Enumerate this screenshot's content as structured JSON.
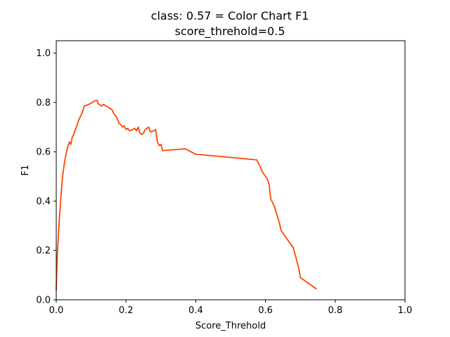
{
  "chart_data": {
    "type": "line",
    "title": "class: 0.57 = Color Chart F1",
    "subtitle": "score_threhold=0.5",
    "xlabel": "Score_Threhold",
    "ylabel": "F1",
    "xlim": [
      0.0,
      1.0
    ],
    "ylim": [
      0.0,
      1.05
    ],
    "grid": false,
    "xticks": [
      0.0,
      0.2,
      0.4,
      0.6,
      0.8,
      1.0
    ],
    "xtick_labels": [
      "0.0",
      "0.2",
      "0.4",
      "0.6",
      "0.8",
      "1.0"
    ],
    "yticks": [
      0.0,
      0.2,
      0.4,
      0.6,
      0.8,
      1.0
    ],
    "ytick_labels": [
      "0.0",
      "0.2",
      "0.4",
      "0.6",
      "0.8",
      "1.0"
    ],
    "series": [
      {
        "color": "#ff4500",
        "x": [
          0.0,
          0.003,
          0.008,
          0.013,
          0.018,
          0.023,
          0.028,
          0.033,
          0.038,
          0.042,
          0.046,
          0.05,
          0.055,
          0.06,
          0.065,
          0.07,
          0.075,
          0.08,
          0.09,
          0.1,
          0.11,
          0.118,
          0.12,
          0.125,
          0.13,
          0.135,
          0.14,
          0.15,
          0.16,
          0.165,
          0.17,
          0.175,
          0.18,
          0.185,
          0.19,
          0.195,
          0.2,
          0.205,
          0.21,
          0.215,
          0.22,
          0.225,
          0.23,
          0.235,
          0.24,
          0.245,
          0.25,
          0.255,
          0.26,
          0.265,
          0.27,
          0.28,
          0.285,
          0.29,
          0.295,
          0.3,
          0.305,
          0.31,
          0.37,
          0.4,
          0.575,
          0.585,
          0.59,
          0.6,
          0.605,
          0.61,
          0.615,
          0.625,
          0.635,
          0.64,
          0.645,
          0.68,
          0.695,
          0.7,
          0.745
        ],
        "values": [
          0.04,
          0.18,
          0.31,
          0.41,
          0.5,
          0.55,
          0.59,
          0.62,
          0.64,
          0.63,
          0.66,
          0.67,
          0.69,
          0.71,
          0.73,
          0.745,
          0.76,
          0.785,
          0.79,
          0.797,
          0.806,
          0.808,
          0.795,
          0.79,
          0.785,
          0.792,
          0.788,
          0.78,
          0.77,
          0.755,
          0.745,
          0.735,
          0.715,
          0.71,
          0.7,
          0.705,
          0.69,
          0.695,
          0.685,
          0.688,
          0.69,
          0.695,
          0.685,
          0.7,
          0.675,
          0.67,
          0.675,
          0.69,
          0.695,
          0.7,
          0.68,
          0.685,
          0.69,
          0.64,
          0.625,
          0.63,
          0.605,
          0.605,
          0.612,
          0.59,
          0.567,
          0.54,
          0.52,
          0.5,
          0.49,
          0.47,
          0.41,
          0.38,
          0.335,
          0.31,
          0.28,
          0.21,
          0.13,
          0.09,
          0.045
        ]
      }
    ]
  }
}
